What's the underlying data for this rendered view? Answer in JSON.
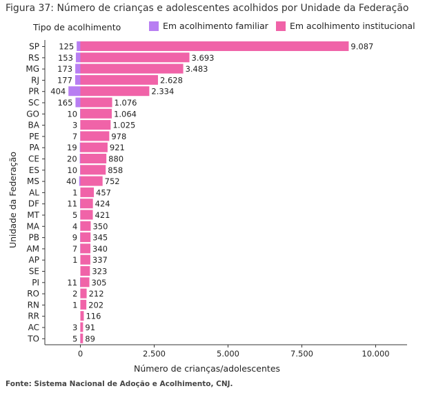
{
  "figure": {
    "title": "Figura 37: Número de crianças e adolescentes acolhidos por Unidade da Federação",
    "source": "Fonte: Sistema Nacional de Adoção e Acolhimento, CNJ."
  },
  "chart_data": {
    "type": "bar",
    "orientation": "horizontal",
    "stacked": true,
    "legend_title": "Tipo de acolhimento",
    "legend_position": "top",
    "xlabel": "Número de crianças/adolescentes",
    "ylabel": "Unidade da Federação",
    "xlim": [
      -1200,
      10800
    ],
    "xticks": [
      0,
      2500,
      5000,
      7500,
      10000
    ],
    "xtick_labels": [
      "0",
      "2.500",
      "5.000",
      "7.500",
      "10.000"
    ],
    "grid": false,
    "categories": [
      "SP",
      "RS",
      "MG",
      "RJ",
      "PR",
      "SC",
      "GO",
      "BA",
      "PE",
      "PA",
      "CE",
      "ES",
      "MS",
      "AL",
      "DF",
      "MT",
      "MA",
      "PB",
      "AM",
      "AP",
      "SE",
      "PI",
      "RO",
      "RN",
      "RR",
      "AC",
      "TO"
    ],
    "series": [
      {
        "name": "Em acolhimento familiar",
        "color": "#b87ef2",
        "direction": "negative",
        "values": [
          125,
          153,
          173,
          177,
          404,
          165,
          10,
          3,
          7,
          19,
          20,
          10,
          40,
          1,
          11,
          5,
          4,
          9,
          7,
          1,
          null,
          11,
          2,
          1,
          null,
          3,
          5
        ],
        "labels": [
          "125",
          "153",
          "173",
          "177",
          "404",
          "165",
          "10",
          "3",
          "7",
          "19",
          "20",
          "10",
          "40",
          "1",
          "11",
          "5",
          "4",
          "9",
          "7",
          "1",
          "",
          "11",
          "2",
          "1",
          "",
          "3",
          "5"
        ]
      },
      {
        "name": "Em acolhimento institucional",
        "color": "#f063a8",
        "direction": "positive",
        "values": [
          9087,
          3693,
          3483,
          2628,
          2334,
          1076,
          1064,
          1025,
          978,
          921,
          880,
          858,
          752,
          457,
          424,
          421,
          350,
          345,
          340,
          337,
          323,
          305,
          212,
          202,
          116,
          91,
          89
        ],
        "labels": [
          "9.087",
          "3.693",
          "3.483",
          "2.628",
          "2.334",
          "1.076",
          "1.064",
          "1.025",
          "978",
          "921",
          "880",
          "858",
          "752",
          "457",
          "424",
          "421",
          "350",
          "345",
          "340",
          "337",
          "323",
          "305",
          "212",
          "202",
          "116",
          "91",
          "89"
        ]
      }
    ]
  }
}
